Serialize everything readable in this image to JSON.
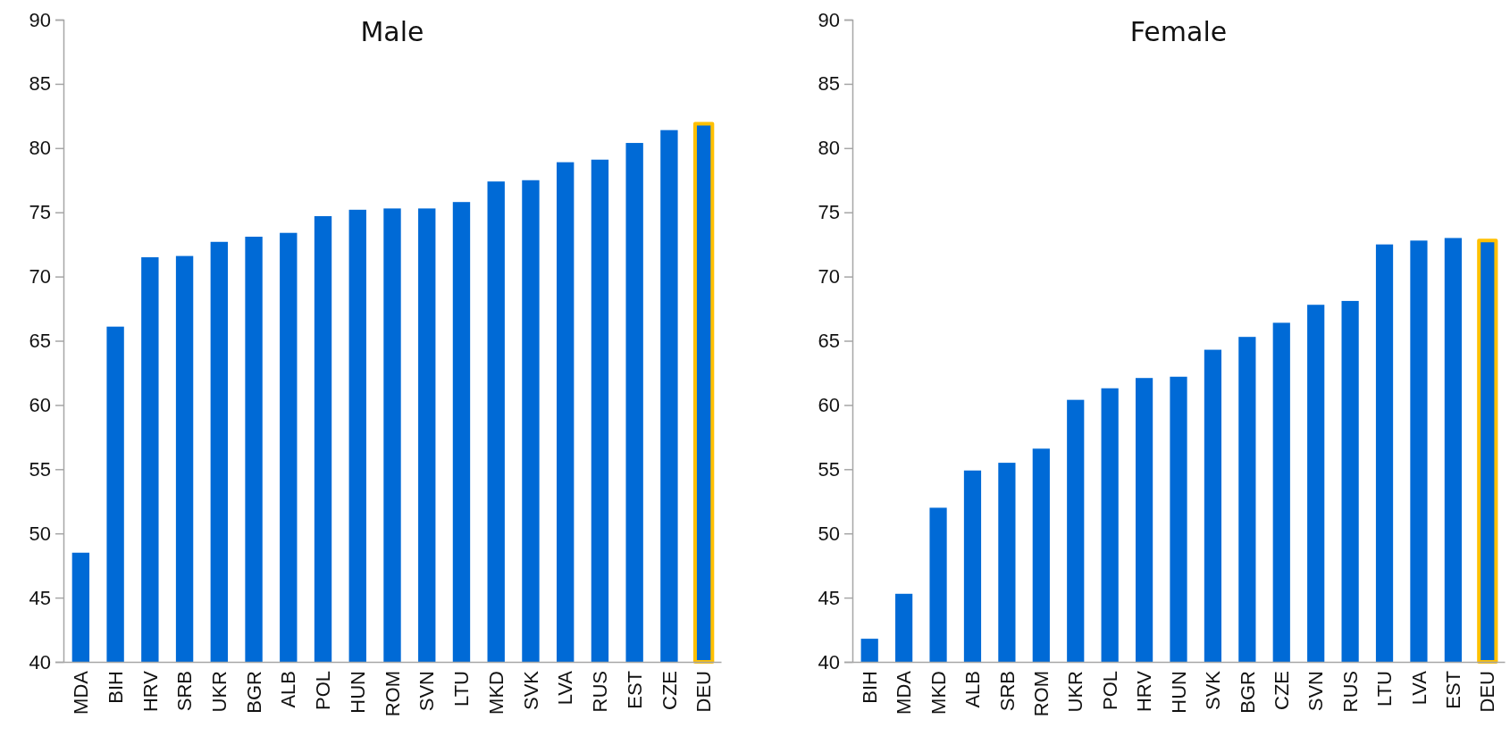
{
  "chart_data": [
    {
      "type": "bar",
      "title": "Male",
      "categories": [
        "MDA",
        "BIH",
        "HRV",
        "SRB",
        "UKR",
        "BGR",
        "ALB",
        "POL",
        "HUN",
        "ROM",
        "SVN",
        "LTU",
        "MKD",
        "SVK",
        "LVA",
        "RUS",
        "EST",
        "CZE",
        "DEU"
      ],
      "values": [
        48.5,
        66.1,
        71.5,
        71.6,
        72.7,
        73.1,
        73.4,
        74.7,
        75.2,
        75.3,
        75.3,
        75.8,
        77.4,
        77.5,
        78.9,
        79.1,
        80.4,
        81.4,
        81.9
      ],
      "color": "#006ad6",
      "ylim": [
        40,
        90
      ],
      "yticks": [
        40,
        45,
        50,
        55,
        60,
        65,
        70,
        75,
        80,
        85,
        90
      ]
    },
    {
      "type": "bar",
      "title": "Female",
      "categories": [
        "BIH",
        "MDA",
        "MKD",
        "ALB",
        "SRB",
        "ROM",
        "UKR",
        "POL",
        "HRV",
        "HUN",
        "SVK",
        "BGR",
        "CZE",
        "SVN",
        "RUS",
        "LTU",
        "LVA",
        "EST",
        "DEU"
      ],
      "values": [
        41.8,
        45.3,
        52.0,
        54.9,
        55.5,
        56.6,
        60.4,
        61.3,
        62.1,
        62.2,
        64.3,
        65.3,
        66.4,
        67.8,
        68.1,
        72.5,
        72.8,
        73.0,
        72.8
      ],
      "color": "#006ad6",
      "ylim": [
        40,
        90
      ],
      "yticks": [
        40,
        45,
        50,
        55,
        60,
        65,
        70,
        75,
        80,
        85,
        90
      ]
    }
  ]
}
